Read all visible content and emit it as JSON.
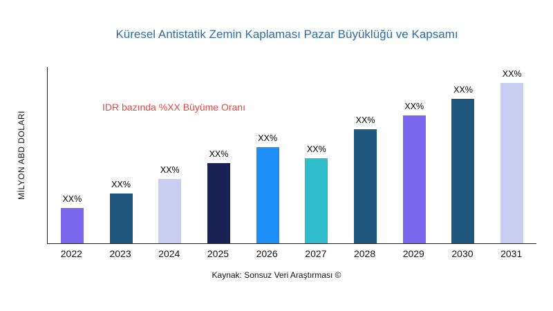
{
  "chart_data": {
    "type": "bar",
    "title": "Küresel Antistatik Zemin Kaplaması Pazar Büyüklüğü ve Kapsamı",
    "ylabel": "MİLYON ABD DOLARI",
    "xlabel": "",
    "annotation": "IDR bazında %XX Büyüme Oranı",
    "source": "Kaynak: Sonsuz Veri Araştırması ©",
    "categories": [
      "2022",
      "2023",
      "2024",
      "2025",
      "2026",
      "2027",
      "2028",
      "2029",
      "2030",
      "2031"
    ],
    "values": [
      22,
      31,
      40,
      50,
      60,
      53,
      71,
      80,
      90,
      100
    ],
    "bar_labels": [
      "XX%",
      "XX%",
      "XX%",
      "XX%",
      "XX%",
      "XX%",
      "XX%",
      "XX%",
      "XX%",
      "XX%"
    ],
    "bar_colors": [
      "#7b68ee",
      "#20577f",
      "#c9cdf0",
      "#192252",
      "#1e8ef7",
      "#2fbccc",
      "#20577f",
      "#7b68ee",
      "#20577f",
      "#c9cdf0"
    ],
    "ylim": [
      0,
      110
    ],
    "grid": false,
    "legend": false
  },
  "style_colors": {
    "title": "#2e6da4",
    "annotation": "#f0413c",
    "axis": "#222222"
  }
}
